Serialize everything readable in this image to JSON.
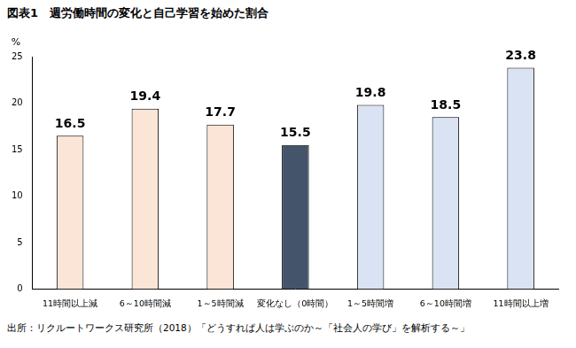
{
  "chart_data": {
    "type": "bar",
    "title": "図表1　週労働時間の変化と自己学習を始めた割合",
    "y_label": "%",
    "source": "出所：リクルートワークス研究所（2018）「どうすれば人は学ぶのか～「社会人の学び」を解析する～」",
    "categories": [
      "11時間以上減",
      "6～10時間減",
      "1～5時間減",
      "変化なし（0時間）",
      "1～5時間増",
      "6～10時間増",
      "11時間以上増"
    ],
    "values": [
      16.5,
      19.4,
      17.7,
      15.5,
      19.8,
      18.5,
      23.8
    ],
    "colors": [
      "#fbe5d6",
      "#fbe5d6",
      "#fbe5d6",
      "#44546a",
      "#dae3f3",
      "#dae3f3",
      "#dae3f3"
    ],
    "ylim": [
      0,
      25
    ],
    "yticks": [
      0,
      5,
      10,
      15,
      20,
      25
    ],
    "grid": false,
    "data_labels": true
  }
}
